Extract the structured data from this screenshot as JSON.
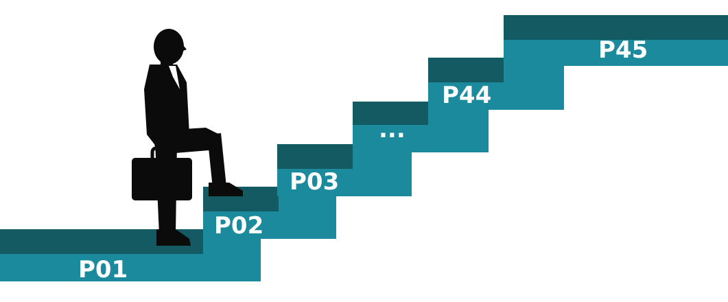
{
  "diagram": {
    "colors": {
      "riser": "#1a8a9c",
      "tread": "#145a63",
      "figure": "#0b0b0b",
      "label": "#ffffff",
      "background": "#ffffff"
    },
    "steps": [
      {
        "label": "P01"
      },
      {
        "label": "P02"
      },
      {
        "label": "P03"
      },
      {
        "label": "..."
      },
      {
        "label": "P44"
      },
      {
        "label": "P45"
      }
    ],
    "figure_icon": "businessman-climbing-icon",
    "briefcase_icon": "briefcase-icon"
  }
}
